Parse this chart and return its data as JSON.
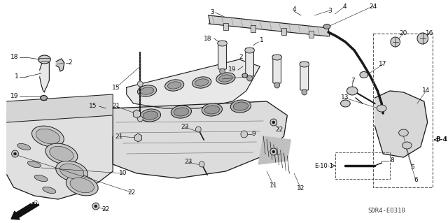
{
  "background_color": "#ffffff",
  "diagram_code": "SDR4-E0310",
  "label_B4": "B-4",
  "label_E10": "E-10-1",
  "fig_width": 6.4,
  "fig_height": 3.19,
  "dpi": 100,
  "line_color": "#1a1a1a",
  "text_color": "#111111",
  "fill_light": "#e8e8e8",
  "fill_mid": "#cccccc",
  "fill_dark": "#aaaaaa"
}
